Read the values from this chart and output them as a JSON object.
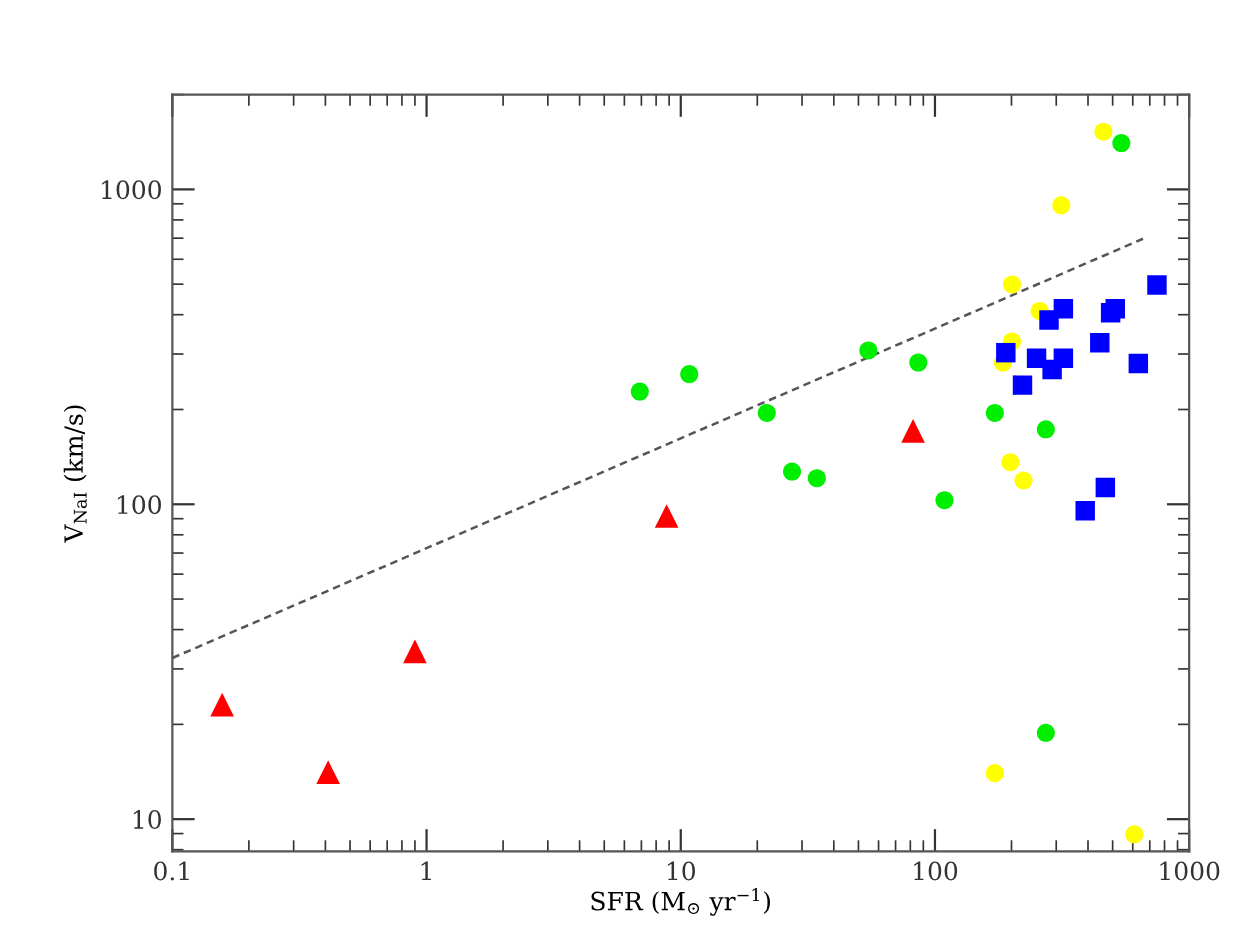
{
  "chart_data": {
    "type": "scatter",
    "xlabel": "SFR (M$_{⊙}$ yr$^{−1}$)",
    "ylabel": "V$_{NaI}$ (km/s)",
    "log": "xy",
    "xlim": [
      0.1,
      1000
    ],
    "xticks": [
      0.1,
      1,
      10,
      100,
      1000
    ],
    "ylim": [
      7.9,
      2000
    ],
    "yticks": [
      10,
      100,
      1000
    ],
    "grid": false,
    "legend": false,
    "series": [
      {
        "color": "#ff0000",
        "marker": "triangle",
        "x": [
          0.157,
          0.41,
          0.9,
          8.8,
          82
        ],
        "values": [
          23.1,
          14.1,
          34.1,
          91.8,
          171
        ]
      },
      {
        "color": "#00ee00",
        "marker": "circle",
        "x": [
          6.9,
          10.8,
          21.8,
          27.4,
          34.3,
          54.7,
          86,
          109,
          172,
          273,
          273,
          541
        ],
        "values": [
          228,
          259,
          195,
          127,
          121,
          308,
          282,
          103,
          195,
          173,
          18.8,
          1403
        ]
      },
      {
        "color": "#ffff00",
        "marker": "circle",
        "x": [
          460,
          314,
          201,
          258,
          201,
          185,
          198,
          223,
          172,
          609
        ],
        "values": [
          1525,
          890,
          499,
          411,
          329,
          282,
          136,
          119,
          14.0,
          8.95
        ]
      },
      {
        "color": "#0000ff",
        "marker": "square",
        "x": [
          190,
          221,
          251,
          281,
          320,
          289,
          320,
          445,
          491,
          512,
          631,
          747,
          390,
          468
        ],
        "values": [
          303,
          239,
          291,
          385,
          418,
          268,
          291,
          326,
          406,
          418,
          280,
          497,
          95.4,
          113
        ]
      },
      {
        "type": "line",
        "color": "#555555",
        "line_style": "dashed",
        "marker": "none",
        "x": [
          0.1,
          658
        ],
        "values": [
          32.5,
          697
        ]
      }
    ]
  }
}
